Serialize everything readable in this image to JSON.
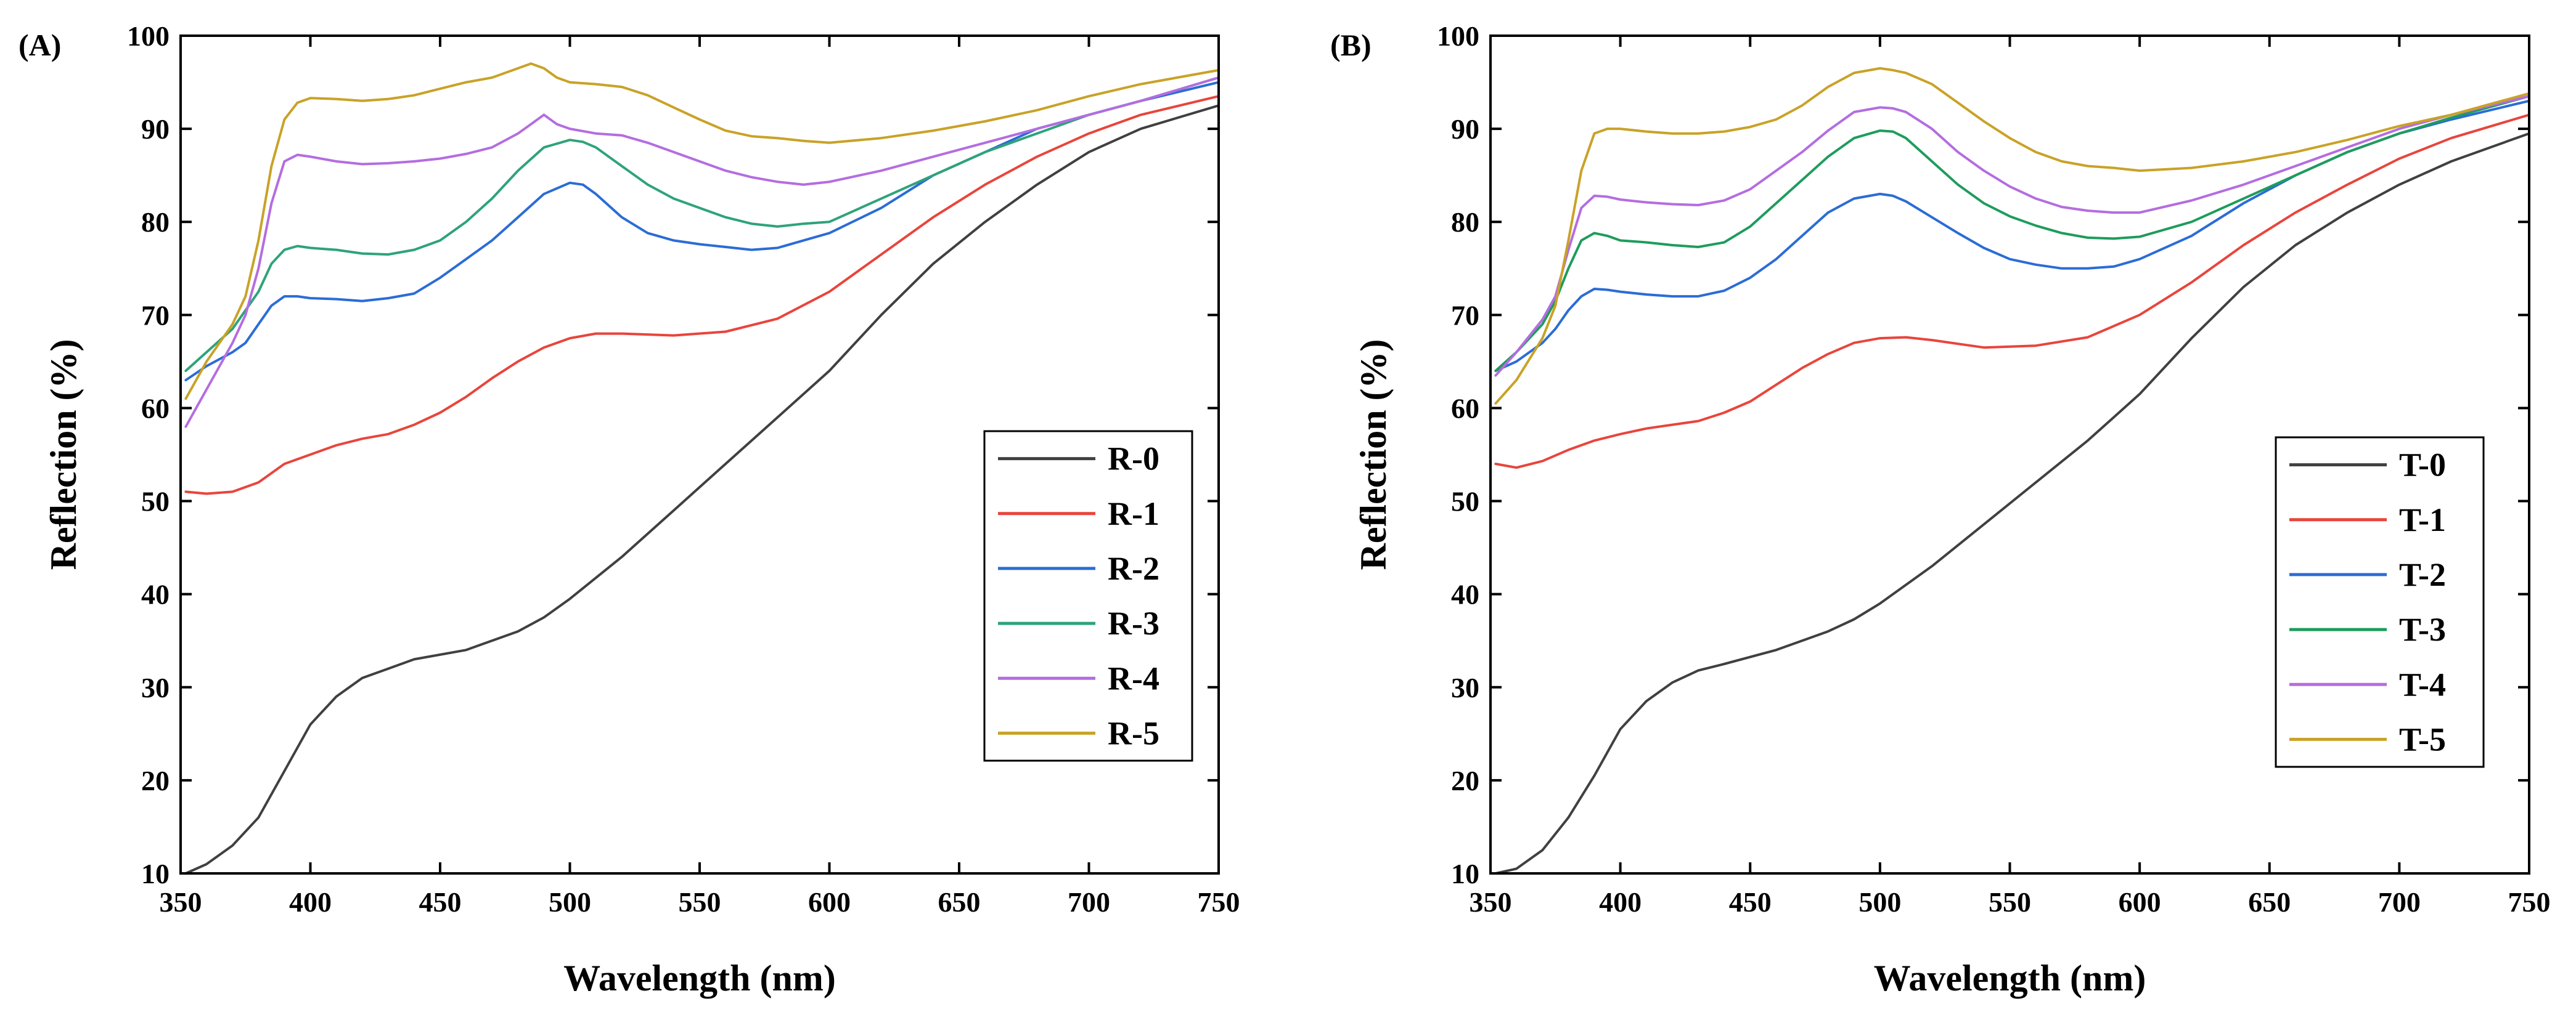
{
  "chart_data": [
    {
      "type": "line",
      "panel_label": "(A)",
      "xlabel": "Wavelength (nm)",
      "ylabel": "Reflection (%)",
      "xlim": [
        350,
        750
      ],
      "ylim": [
        10,
        100
      ],
      "xticks": [
        350,
        400,
        450,
        500,
        550,
        600,
        650,
        700,
        750
      ],
      "yticks": [
        10,
        20,
        30,
        40,
        50,
        60,
        70,
        80,
        90,
        100
      ],
      "legend_position": "right-middle",
      "series": [
        {
          "name": "R-0",
          "color": "#404040",
          "x": [
            352,
            360,
            370,
            380,
            390,
            400,
            410,
            420,
            430,
            440,
            460,
            480,
            490,
            500,
            520,
            540,
            560,
            580,
            600,
            620,
            640,
            660,
            680,
            700,
            720,
            750
          ],
          "y": [
            10,
            11,
            13,
            16,
            21,
            26,
            29,
            31,
            32,
            33,
            34,
            36,
            37.5,
            39.5,
            44,
            49,
            54,
            59,
            64,
            70,
            75.5,
            80,
            84,
            87.5,
            90,
            92.5
          ]
        },
        {
          "name": "R-1",
          "color": "#e8453c",
          "x": [
            352,
            360,
            370,
            380,
            390,
            400,
            410,
            420,
            430,
            440,
            450,
            460,
            470,
            480,
            490,
            500,
            510,
            520,
            540,
            560,
            580,
            600,
            620,
            640,
            660,
            680,
            700,
            720,
            750
          ],
          "y": [
            51,
            50.8,
            51,
            52,
            54,
            55,
            56,
            56.7,
            57.2,
            58.2,
            59.5,
            61.2,
            63.2,
            65,
            66.5,
            67.5,
            68,
            68,
            67.8,
            68.2,
            69.6,
            72.5,
            76.5,
            80.5,
            84,
            87,
            89.5,
            91.5,
            93.5
          ]
        },
        {
          "name": "R-2",
          "color": "#2b6cd6",
          "x": [
            352,
            360,
            370,
            375,
            380,
            385,
            390,
            395,
            400,
            410,
            420,
            430,
            440,
            450,
            460,
            470,
            480,
            490,
            500,
            505,
            510,
            520,
            530,
            540,
            550,
            560,
            570,
            580,
            590,
            600,
            620,
            640,
            660,
            680,
            700,
            720,
            750
          ],
          "y": [
            63,
            64.5,
            66,
            67,
            69,
            71,
            72,
            72,
            71.8,
            71.7,
            71.5,
            71.8,
            72.3,
            74,
            76,
            78,
            80.5,
            83,
            84.2,
            84,
            83,
            80.5,
            78.8,
            78,
            77.6,
            77.3,
            77,
            77.2,
            78,
            78.8,
            81.5,
            85,
            87.5,
            90,
            91.5,
            93,
            95
          ]
        },
        {
          "name": "R-3",
          "color": "#2ea37a",
          "x": [
            352,
            360,
            370,
            380,
            385,
            390,
            395,
            400,
            410,
            420,
            430,
            440,
            450,
            460,
            470,
            480,
            490,
            500,
            505,
            510,
            520,
            530,
            540,
            550,
            560,
            570,
            580,
            590,
            600,
            620,
            640,
            660,
            680,
            700,
            720,
            750
          ],
          "y": [
            64,
            66,
            68.5,
            72.5,
            75.5,
            77,
            77.4,
            77.2,
            77,
            76.6,
            76.5,
            77,
            78,
            80,
            82.5,
            85.5,
            88,
            88.8,
            88.6,
            88,
            86,
            84,
            82.5,
            81.5,
            80.5,
            79.8,
            79.5,
            79.8,
            80,
            82.5,
            85,
            87.5,
            89.5,
            91.5,
            93,
            95.5
          ]
        },
        {
          "name": "R-4",
          "color": "#b46de0",
          "x": [
            352,
            360,
            370,
            375,
            380,
            385,
            390,
            395,
            400,
            410,
            420,
            430,
            440,
            450,
            460,
            470,
            480,
            485,
            490,
            495,
            500,
            510,
            520,
            530,
            540,
            550,
            560,
            570,
            580,
            590,
            600,
            620,
            640,
            660,
            680,
            700,
            720,
            750
          ],
          "y": [
            58,
            62,
            67,
            70,
            75,
            82,
            86.5,
            87.2,
            87,
            86.5,
            86.2,
            86.3,
            86.5,
            86.8,
            87.3,
            88,
            89.5,
            90.5,
            91.5,
            90.5,
            90,
            89.5,
            89.3,
            88.5,
            87.5,
            86.5,
            85.5,
            84.8,
            84.3,
            84,
            84.3,
            85.5,
            87,
            88.5,
            90,
            91.5,
            93,
            95.5
          ]
        },
        {
          "name": "R-5",
          "color": "#c9a227",
          "x": [
            352,
            360,
            370,
            375,
            380,
            385,
            390,
            395,
            400,
            410,
            420,
            430,
            440,
            450,
            460,
            470,
            480,
            485,
            490,
            495,
            500,
            510,
            520,
            530,
            540,
            550,
            560,
            570,
            580,
            590,
            600,
            620,
            640,
            660,
            680,
            700,
            720,
            750
          ],
          "y": [
            61,
            65,
            69,
            72,
            78,
            86,
            91,
            92.8,
            93.3,
            93.2,
            93,
            93.2,
            93.6,
            94.3,
            95,
            95.5,
            96.5,
            97,
            96.5,
            95.5,
            95,
            94.8,
            94.5,
            93.6,
            92.3,
            91,
            89.8,
            89.2,
            89,
            88.7,
            88.5,
            89,
            89.8,
            90.8,
            92,
            93.5,
            94.8,
            96.3
          ]
        }
      ]
    },
    {
      "type": "line",
      "panel_label": "(B)",
      "xlabel": "Wavelength (nm)",
      "ylabel": "Reflection (%)",
      "xlim": [
        350,
        750
      ],
      "ylim": [
        10,
        100
      ],
      "xticks": [
        350,
        400,
        450,
        500,
        550,
        600,
        650,
        700,
        750
      ],
      "yticks": [
        10,
        20,
        30,
        40,
        50,
        60,
        70,
        80,
        90,
        100
      ],
      "legend_position": "right-middle",
      "series": [
        {
          "name": "T-0",
          "color": "#404040",
          "x": [
            352,
            360,
            370,
            380,
            390,
            400,
            410,
            420,
            430,
            440,
            460,
            480,
            490,
            500,
            520,
            540,
            560,
            580,
            600,
            620,
            640,
            660,
            680,
            700,
            720,
            750
          ],
          "y": [
            10,
            10.5,
            12.5,
            16,
            20.5,
            25.5,
            28.5,
            30.5,
            31.8,
            32.5,
            34,
            36,
            37.3,
            39,
            43,
            47.5,
            52,
            56.5,
            61.5,
            67.5,
            73,
            77.5,
            81,
            84,
            86.5,
            89.5
          ]
        },
        {
          "name": "T-1",
          "color": "#e8453c",
          "x": [
            352,
            360,
            370,
            380,
            390,
            400,
            410,
            420,
            430,
            440,
            450,
            460,
            470,
            480,
            490,
            500,
            510,
            520,
            540,
            560,
            580,
            600,
            620,
            640,
            660,
            680,
            700,
            720,
            750
          ],
          "y": [
            54,
            53.6,
            54.3,
            55.5,
            56.5,
            57.2,
            57.8,
            58.2,
            58.6,
            59.5,
            60.7,
            62.5,
            64.3,
            65.8,
            67,
            67.5,
            67.6,
            67.3,
            66.5,
            66.7,
            67.6,
            70,
            73.5,
            77.5,
            81,
            84,
            86.8,
            89,
            91.5
          ]
        },
        {
          "name": "T-2",
          "color": "#2b6cd6",
          "x": [
            352,
            360,
            370,
            375,
            380,
            385,
            390,
            395,
            400,
            410,
            420,
            430,
            440,
            450,
            460,
            470,
            480,
            490,
            500,
            505,
            510,
            520,
            530,
            540,
            550,
            560,
            570,
            580,
            590,
            600,
            620,
            640,
            660,
            680,
            700,
            720,
            750
          ],
          "y": [
            64,
            65,
            67,
            68.5,
            70.5,
            72,
            72.8,
            72.7,
            72.5,
            72.2,
            72,
            72,
            72.6,
            74,
            76,
            78.5,
            81,
            82.5,
            83,
            82.8,
            82.2,
            80.5,
            78.8,
            77.2,
            76,
            75.4,
            75,
            75,
            75.2,
            76,
            78.5,
            82,
            85,
            87.5,
            89.5,
            91,
            93
          ]
        },
        {
          "name": "T-3",
          "color": "#1e9c5c",
          "x": [
            352,
            360,
            370,
            375,
            380,
            385,
            390,
            395,
            400,
            410,
            420,
            430,
            440,
            450,
            460,
            470,
            480,
            490,
            500,
            505,
            510,
            520,
            530,
            540,
            550,
            560,
            570,
            580,
            590,
            600,
            620,
            640,
            660,
            680,
            700,
            720,
            750
          ],
          "y": [
            64,
            66,
            69,
            71.5,
            75,
            78,
            78.8,
            78.5,
            78,
            77.8,
            77.5,
            77.3,
            77.8,
            79.5,
            82,
            84.5,
            87,
            89,
            89.8,
            89.7,
            89,
            86.5,
            84,
            82,
            80.6,
            79.6,
            78.8,
            78.3,
            78.2,
            78.4,
            80,
            82.5,
            85,
            87.5,
            89.5,
            91.2,
            93.5
          ]
        },
        {
          "name": "T-4",
          "color": "#b46de0",
          "x": [
            352,
            360,
            370,
            375,
            380,
            385,
            390,
            395,
            400,
            410,
            420,
            430,
            440,
            450,
            460,
            470,
            480,
            490,
            500,
            505,
            510,
            520,
            530,
            540,
            550,
            560,
            570,
            580,
            590,
            600,
            620,
            640,
            660,
            680,
            700,
            720,
            750
          ],
          "y": [
            63.5,
            66,
            69.5,
            72,
            77,
            81.5,
            82.8,
            82.7,
            82.4,
            82.1,
            81.9,
            81.8,
            82.3,
            83.5,
            85.5,
            87.5,
            89.8,
            91.8,
            92.3,
            92.2,
            91.8,
            90,
            87.5,
            85.5,
            83.8,
            82.5,
            81.6,
            81.2,
            81,
            81,
            82.3,
            84,
            86,
            88,
            90,
            91.5,
            93.5
          ]
        },
        {
          "name": "T-5",
          "color": "#c9a227",
          "x": [
            352,
            360,
            370,
            375,
            380,
            385,
            390,
            395,
            400,
            410,
            420,
            430,
            440,
            450,
            460,
            470,
            480,
            490,
            500,
            505,
            510,
            520,
            530,
            540,
            550,
            560,
            570,
            580,
            590,
            600,
            620,
            640,
            660,
            680,
            700,
            720,
            750
          ],
          "y": [
            60.5,
            63,
            67.5,
            71,
            78,
            85.5,
            89.5,
            90,
            90,
            89.7,
            89.5,
            89.5,
            89.7,
            90.2,
            91,
            92.5,
            94.5,
            96,
            96.5,
            96.3,
            96,
            94.8,
            92.8,
            90.8,
            89,
            87.5,
            86.5,
            86,
            85.8,
            85.5,
            85.8,
            86.5,
            87.5,
            88.8,
            90.3,
            91.5,
            93.8
          ]
        }
      ]
    }
  ]
}
